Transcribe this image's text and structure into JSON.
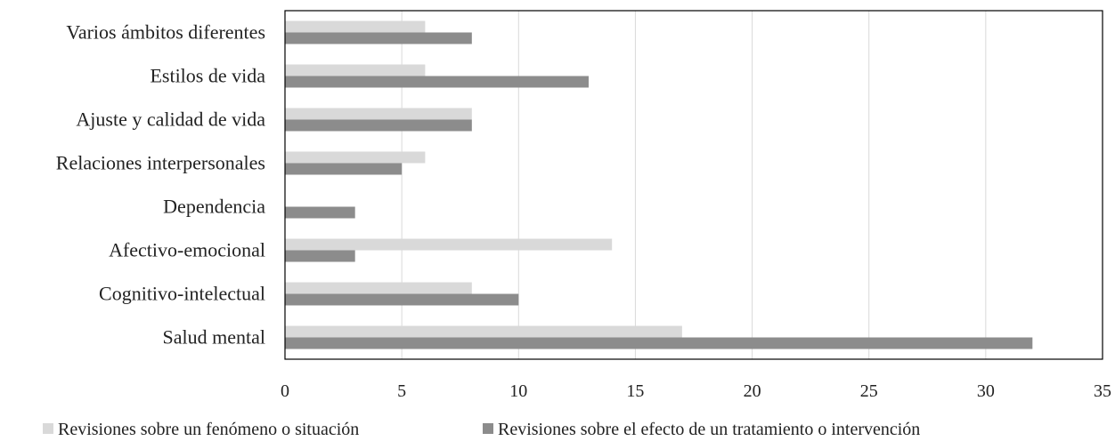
{
  "chart_data": {
    "type": "bar",
    "orientation": "horizontal",
    "title": "",
    "xlabel": "",
    "ylabel": "",
    "categories": [
      "Varios ámbitos diferentes",
      "Estilos de vida",
      "Ajuste y calidad de vida",
      "Relaciones interpersonales",
      "Dependencia",
      "Afectivo-emocional",
      "Cognitivo-intelectual",
      "Salud mental"
    ],
    "series": [
      {
        "name": "Revisiones sobre un fenómeno o situación",
        "color": "#d9d9d9",
        "values": [
          6,
          6,
          8,
          6,
          0,
          14,
          8,
          17
        ]
      },
      {
        "name": "Revisiones sobre el efecto de un tratamiento o intervención",
        "color": "#8c8c8c",
        "values": [
          8,
          13,
          8,
          5,
          3,
          3,
          10,
          32
        ]
      }
    ],
    "xlim": [
      0,
      35
    ],
    "xticks": [
      0,
      5,
      10,
      15,
      20,
      25,
      30,
      35
    ],
    "grid": true,
    "legend_position": "bottom"
  }
}
